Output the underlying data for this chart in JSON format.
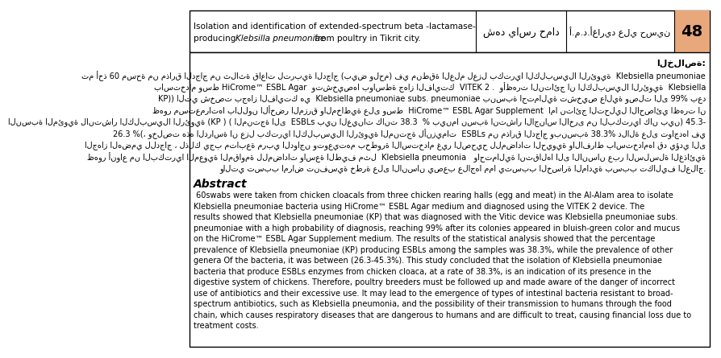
{
  "title_line1": "Isolation and identification of extended-spectrum beta -lactamase-",
  "title_line2_normal1": "producing ",
  "title_line2_italic": "Klebsilla pneumoniae",
  "title_line2_normal2": " from poultry in Tikrit city.",
  "author1": "أ.م.د.أغاريد علي حسين",
  "author2": "شهد ياسر حماد",
  "article_num": "48",
  "arabic_abstract_label": "الخلاصة:",
  "arabic_lines": [
    "تم أخذ 60 مسحة من مذارق الدجاج من ثلاثة قاعات لتربية الدجاج (بيض ولحم) في منطقة العلم لعزل بكتريا الكلبسيلا الرئوية  Klebsiella pneumoniae",
    "باستخدام وسط HiCrome™ ESBL Agar  وتشخيصها بواسطة جهاز الفايتك  VITEK 2 .  وأظهرت النتائج ان الكلبسيلا الرئوية  Klebsiella",
    "KP)) التي شخصت بجهاز الفايتك هي  Klebsiella pneumoniae subs. pneumoniae بنسبة احتمالية تشخيص عالية وصلت الى 99% بعد",
    "ظهور مستعمراتها باللون الأخضر المزرق والمخاطية على وسط  HiCrome™ ESBL Agar Supplement  اما نتائج التحليل الاحصائي اظهرت ان",
    "النسبة المئوية لانتشار الكلبسيلا الرئوية (KP ) ( المنتجة الى  ESBLs بين العينات كانت 38.3  % بينما نسبة انتشار الاجناس الاخرى من البكتريا كان بين) 45.3-",
    "26.3 %(، وخلصت هذه الدراسة ان عزل بكتريا الكلبسيلا الرئوية المنتجة لأنزيمات  ESBLs من مذارق الدجاج وبنسبة 38.3% دلالة على تواجدها في",
    "الجهاز الهضمي للدجاج ، لذلك يجب متابعة مربي الدواجن وتوعيتهم بخطورة الاستخدام غير الصحيح للمضادات الحيوية والافراط باستخدامها قد يؤدي الى",
    "ظهور أنواع من البكتريا المعوية المقاومة للمضادات واسعة الطيف مثل  Klebsiella pneumonia   واحتمالية انتقالها الى الانسان عبر السلسلة الغذائية",
    "والتي تسبب امراض تنفسية خطرة على الانسان يصعب علاجها مما يتسبب الخسارة المادية بسبب تكاليف العلاج."
  ],
  "abstract_label": "Abstract",
  "abstract_lines": [
    " 60swabs were taken from chicken cloacals from three chicken rearing halls (egg and meat) in the Al-Alam area to isolate",
    "Klebsiella pneumoniae bacteria using HiCrome™ ESBL Agar medium and diagnosed using the VITEK 2 device. The",
    "results showed that Klebsiella pneumoniae (KP) that was diagnosed with the Vitic device was Klebsiella pneumoniae subs.",
    "pneumoniae with a high probability of diagnosis, reaching 99% after its colonies appeared in bluish-green color and mucus",
    "on the HiCrome™ ESBL Agar Supplement medium. The results of the statistical analysis showed that the percentage",
    "prevalence of Klebsiella pneumoniae (KP) producing ESBLs among the samples was 38.3%, while the prevalence of other",
    "genera Of the bacteria, it was between (26.3-45.3%). This study concluded that the isolation of Klebsiella pneumoniae",
    "bacteria that produce ESBLs enzymes from chicken cloaca, at a rate of 38.3%, is an indication of its presence in the",
    "digestive system of chickens. Therefore, poultry breeders must be followed up and made aware of the danger of incorrect",
    "use of antibiotics and their excessive use. It may lead to the emergence of types of intestinal bacteria resistant to broad-",
    "spectrum antibiotics, such as Klebsiella pneumonia, and the possibility of their transmission to humans through the food",
    "chain, which causes respiratory diseases that are dangerous to humans and are difficult to treat, causing financial loss due to",
    "treatment costs."
  ],
  "bg_color": "#ffffff",
  "header_bg": "#ffffff",
  "number_bg": "#e8a87c",
  "border_color": "#000000",
  "text_color": "#000000"
}
